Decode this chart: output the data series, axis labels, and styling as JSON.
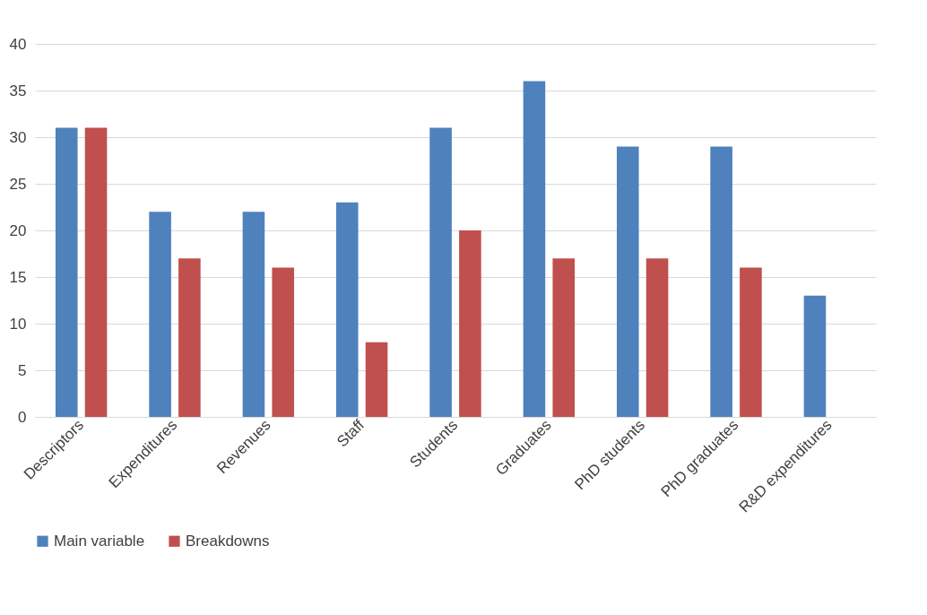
{
  "chart_data": {
    "type": "bar",
    "categories": [
      "Descriptors",
      "Expenditures",
      "Revenues",
      "Staff",
      "Students",
      "Graduates",
      "PhD students",
      "PhD graduates",
      "R&D expenditures"
    ],
    "series": [
      {
        "name": "Main variable",
        "color": "#4f81bd",
        "values": [
          31,
          22,
          22,
          23,
          31,
          36,
          29,
          29,
          13
        ]
      },
      {
        "name": "Breakdowns",
        "color": "#c0504d",
        "values": [
          31,
          17,
          16,
          8,
          20,
          17,
          17,
          16,
          null
        ]
      }
    ],
    "ylim": [
      0,
      40
    ],
    "yticks": [
      0,
      5,
      10,
      15,
      20,
      25,
      30,
      35,
      40
    ],
    "grid": "y",
    "legend": "bottom"
  }
}
